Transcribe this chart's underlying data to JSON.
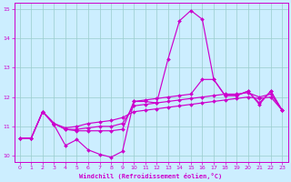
{
  "xlabel": "Windchill (Refroidissement éolien,°C)",
  "bg_color": "#cceeff",
  "line_color": "#cc00cc",
  "grid_color": "#99cccc",
  "xlim": [
    -0.5,
    23.5
  ],
  "ylim": [
    9.8,
    15.2
  ],
  "yticks": [
    10,
    11,
    12,
    13,
    14,
    15
  ],
  "xticks": [
    0,
    1,
    2,
    3,
    4,
    5,
    6,
    7,
    8,
    9,
    10,
    11,
    12,
    13,
    14,
    15,
    16,
    17,
    18,
    19,
    20,
    21,
    22,
    23
  ],
  "lines": [
    [
      10.6,
      10.6,
      11.5,
      11.05,
      10.35,
      10.55,
      10.2,
      10.05,
      9.95,
      10.15,
      11.85,
      11.85,
      11.8,
      13.3,
      14.6,
      14.95,
      14.65,
      12.6,
      12.05,
      12.05,
      12.2,
      11.75,
      12.2,
      11.55
    ],
    [
      10.6,
      10.6,
      11.5,
      11.1,
      10.9,
      10.85,
      10.85,
      10.85,
      10.85,
      10.9,
      11.85,
      11.9,
      11.95,
      12.0,
      12.05,
      12.1,
      12.6,
      12.6,
      12.05,
      12.05,
      12.2,
      11.8,
      12.2,
      11.55
    ],
    [
      10.6,
      10.6,
      11.5,
      11.1,
      10.9,
      10.9,
      10.95,
      11.0,
      11.0,
      11.1,
      11.7,
      11.75,
      11.8,
      11.85,
      11.9,
      11.95,
      12.0,
      12.05,
      12.1,
      12.1,
      12.15,
      12.0,
      12.1,
      11.55
    ],
    [
      10.6,
      10.6,
      11.5,
      11.1,
      10.95,
      11.0,
      11.1,
      11.15,
      11.2,
      11.3,
      11.5,
      11.55,
      11.6,
      11.65,
      11.7,
      11.75,
      11.8,
      11.85,
      11.9,
      11.95,
      12.0,
      11.95,
      12.0,
      11.55
    ]
  ]
}
